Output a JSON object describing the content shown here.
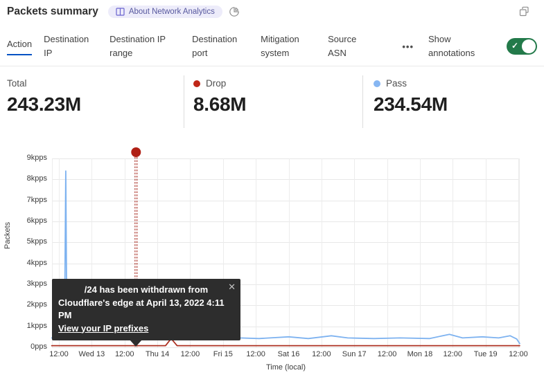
{
  "header": {
    "title": "Packets summary",
    "about_badge": "About Network Analytics",
    "icons": {
      "book": "book-icon",
      "pie": "pie-chart-icon",
      "popout": "popout-icon"
    }
  },
  "tabs": {
    "items": [
      "Action",
      "Destination IP",
      "Destination IP range",
      "Destination port",
      "Mitigation system",
      "Source ASN"
    ],
    "active": "Action",
    "more_label": "•••",
    "show_annotations_label": "Show annotations",
    "annotations_toggle_on": true,
    "active_underline_color": "#0051c3",
    "toggle_color": "#237a4a"
  },
  "stats": {
    "total": {
      "label": "Total",
      "value": "243.23M"
    },
    "drop": {
      "label": "Drop",
      "value": "8.68M",
      "dot_color": "#bf2617"
    },
    "pass": {
      "label": "Pass",
      "value": "234.54M",
      "dot_color": "#86b6f2"
    }
  },
  "chart_data": {
    "type": "line",
    "title": "Packets summary",
    "xlabel": "Time (local)",
    "ylabel": "Packets",
    "x_tick_labels": [
      "12:00",
      "Wed 13",
      "12:00",
      "Thu 14",
      "12:00",
      "Fri 15",
      "12:00",
      "Sat 16",
      "12:00",
      "Sun 17",
      "12:00",
      "Mon 18",
      "12:00",
      "Tue 19",
      "12:00"
    ],
    "x_tick_unit_hours": 12,
    "xlim_ticks": [
      -0.22,
      14.04
    ],
    "y_tick_labels": [
      "0pps",
      "1kpps",
      "2kpps",
      "3kpps",
      "4kpps",
      "5kpps",
      "6kpps",
      "7kpps",
      "8kpps",
      "9kpps"
    ],
    "ylim_kpps": [
      0,
      9
    ],
    "grid": true,
    "legend_position": "top-stats",
    "series": [
      {
        "name": "Pass",
        "color": "#7db2f0",
        "points": [
          [
            -0.22,
            0.45
          ],
          [
            0.0,
            0.45
          ],
          [
            0.05,
            1.3
          ],
          [
            0.09,
            0.55
          ],
          [
            0.17,
            0.6
          ],
          [
            0.21,
            8.4
          ],
          [
            0.24,
            1.2
          ],
          [
            0.3,
            0.95
          ],
          [
            0.45,
            0.6
          ],
          [
            0.7,
            0.45
          ],
          [
            1.2,
            0.42
          ],
          [
            1.55,
            0.65
          ],
          [
            1.75,
            0.45
          ],
          [
            2.3,
            0.42
          ],
          [
            2.8,
            0.45
          ],
          [
            3.35,
            0.68
          ],
          [
            3.55,
            0.45
          ],
          [
            4.2,
            0.42
          ],
          [
            5.15,
            0.58
          ],
          [
            5.5,
            0.45
          ],
          [
            6.1,
            0.42
          ],
          [
            7.0,
            0.5
          ],
          [
            7.6,
            0.42
          ],
          [
            8.3,
            0.55
          ],
          [
            8.8,
            0.45
          ],
          [
            9.6,
            0.42
          ],
          [
            10.4,
            0.45
          ],
          [
            11.3,
            0.42
          ],
          [
            11.9,
            0.62
          ],
          [
            12.3,
            0.45
          ],
          [
            12.9,
            0.5
          ],
          [
            13.4,
            0.45
          ],
          [
            13.75,
            0.55
          ],
          [
            13.95,
            0.4
          ],
          [
            14.04,
            0.18
          ]
        ]
      },
      {
        "name": "Drop",
        "color": "#ac2f1f",
        "points": [
          [
            -0.22,
            0.08
          ],
          [
            3.25,
            0.08
          ],
          [
            3.42,
            0.42
          ],
          [
            3.6,
            0.08
          ],
          [
            14.04,
            0.08
          ]
        ]
      }
    ],
    "annotation_marker": {
      "x_tick": 2.35,
      "dot_color": "#b01f14",
      "line_color": "#a32015"
    }
  },
  "annotation_tooltip": {
    "line1": "/24 has been withdrawn from",
    "line2": "Cloudflare's edge at April 13, 2022 4:11 PM",
    "link": "View your IP prefixes",
    "close": "✕"
  }
}
